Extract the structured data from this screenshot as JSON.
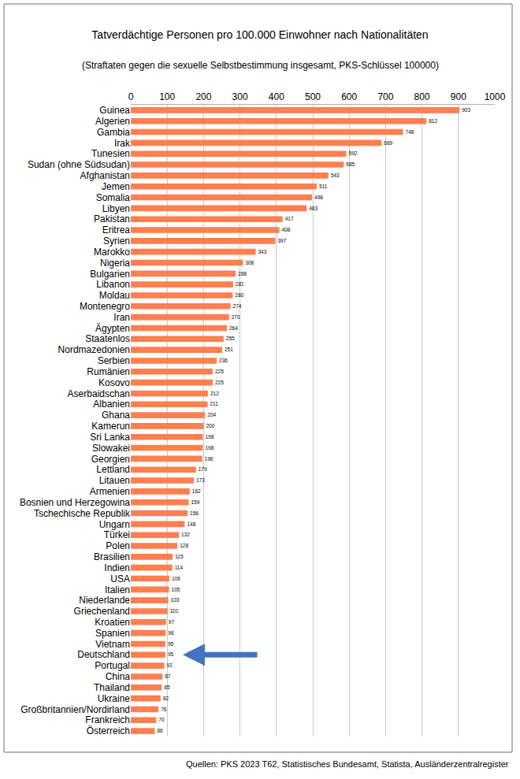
{
  "chart_data": {
    "type": "bar",
    "orientation": "horizontal",
    "title": "Tatverdächtige Personen pro 100.000 Einwohner nach Nationalitäten",
    "subtitle": "(Straftaten gegen die sexuelle Selbstbestimmung insgesamt, PKS-Schlüssel 100000)",
    "source": "Quellen: PKS 2023 T62, Statistisches Bundesamt, Statista, Ausländerzentralregister",
    "categories": [
      "Guinea",
      "Algerien",
      "Gambia",
      "Irak",
      "Tunesien",
      "Sudan (ohne Südsudan)",
      "Afghanistan",
      "Jemen",
      "Somalia",
      "Libyen",
      "Pakistan",
      "Eritrea",
      "Syrien",
      "Marokko",
      "Nigeria",
      "Bulgarien",
      "Libanon",
      "Moldau",
      "Montenegro",
      "Iran",
      "Ägypten",
      "Staatenlos",
      "Nordmazedonien",
      "Serbien",
      "Rumänien",
      "Kosovo",
      "Aserbaidschan",
      "Albanien",
      "Ghana",
      "Kamerun",
      "Sri Lanka",
      "Slowakei",
      "Georgien",
      "Lettland",
      "Litauen",
      "Armenien",
      "Bosnien und Herzegowina",
      "Tschechische Republik",
      "Ungarn",
      "Türkei",
      "Polen",
      "Brasilien",
      "Indien",
      "USA",
      "Italien",
      "Niederlande",
      "Griechenland",
      "Kroatien",
      "Spanien",
      "Vietnam",
      "Deutschland",
      "Portugal",
      "China",
      "Thailand",
      "Ukraine",
      "Großbritannien/Nordirland",
      "Frankreich",
      "Österreich"
    ],
    "values": [
      903,
      812,
      748,
      689,
      592,
      585,
      543,
      511,
      498,
      483,
      417,
      408,
      397,
      343,
      308,
      288,
      281,
      280,
      274,
      270,
      264,
      255,
      251,
      236,
      225,
      225,
      212,
      211,
      204,
      200,
      198,
      198,
      196,
      179,
      173,
      162,
      159,
      156,
      148,
      132,
      128,
      115,
      114,
      106,
      105,
      103,
      101,
      97,
      96,
      95,
      95,
      92,
      87,
      85,
      82,
      76,
      70,
      66
    ],
    "color": "#ff7f50",
    "xlim": [
      0,
      1000
    ],
    "xticks": [
      0,
      100,
      200,
      300,
      400,
      500,
      600,
      700,
      800,
      900,
      1000
    ],
    "grid": true,
    "data_labels": true,
    "annotations": [
      {
        "category": "Deutschland",
        "marker": "arrow",
        "color": "#4472c4"
      }
    ]
  }
}
